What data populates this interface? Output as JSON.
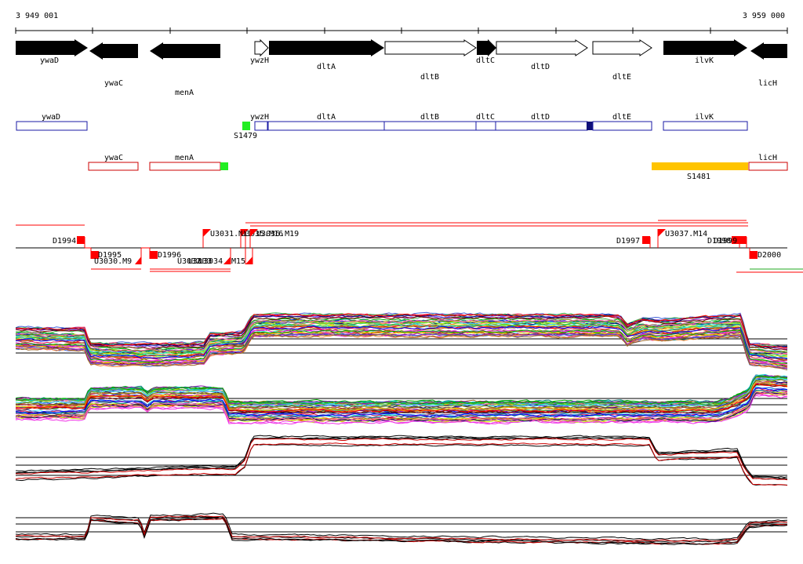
{
  "coords": {
    "start": "3 949 001",
    "end": "3 959 000"
  },
  "colors": {
    "black": "#000000",
    "blue": "#1a1aa6",
    "red": "#cc0000",
    "green": "#22ee22",
    "yellow": "#ffc400",
    "navy": "#10107a"
  },
  "genes": [
    {
      "name": "ywaD",
      "strand": "+",
      "filled": true
    },
    {
      "name": "ywaC",
      "strand": "-",
      "filled": true
    },
    {
      "name": "menA",
      "strand": "-",
      "filled": true
    },
    {
      "name": "ywzH",
      "strand": "+",
      "filled": false
    },
    {
      "name": "dltA",
      "strand": "+",
      "filled": true
    },
    {
      "name": "dltB",
      "strand": "+",
      "filled": false
    },
    {
      "name": "dltC",
      "strand": "+",
      "filled": true
    },
    {
      "name": "dltD",
      "strand": "+",
      "filled": false
    },
    {
      "name": "dltE",
      "strand": "+",
      "filled": false
    },
    {
      "name": "ilvK",
      "strand": "+",
      "filled": true
    },
    {
      "name": "licH",
      "strand": "-",
      "filled": true
    }
  ],
  "blue_boxes": [
    {
      "name": "ywaD"
    },
    {
      "name": "ywzH"
    },
    {
      "name": "dltA"
    },
    {
      "name": "dltB"
    },
    {
      "name": "dltC"
    },
    {
      "name": "dltD"
    },
    {
      "name": "dltE"
    },
    {
      "name": "ilvK"
    }
  ],
  "red_boxes": [
    {
      "name": "ywaC"
    },
    {
      "name": "menA"
    },
    {
      "name": "licH"
    }
  ],
  "features": [
    {
      "name": "S1479",
      "color": "green"
    },
    {
      "name": "S1481",
      "color": "yellow"
    }
  ],
  "markers": [
    {
      "name": "D1994",
      "type": "D"
    },
    {
      "name": "D1995",
      "type": "D"
    },
    {
      "name": "U3030.M9",
      "type": "U"
    },
    {
      "name": "D1996",
      "type": "D"
    },
    {
      "name": "U3032",
      "type": "U"
    },
    {
      "name": "U3033",
      "type": "U"
    },
    {
      "name": "U3034",
      "type": "U"
    },
    {
      "name": "M15",
      "type": "U"
    },
    {
      "name": "U3031.M13",
      "type": "U"
    },
    {
      "name": "U3035.M16",
      "type": "U"
    },
    {
      "name": "U3036.M19",
      "type": "U"
    },
    {
      "name": "D1997",
      "type": "D"
    },
    {
      "name": "U3037.M14",
      "type": "U"
    },
    {
      "name": "D1998",
      "type": "D"
    },
    {
      "name": "D1999",
      "type": "D"
    },
    {
      "name": "D2000",
      "type": "D"
    }
  ]
}
